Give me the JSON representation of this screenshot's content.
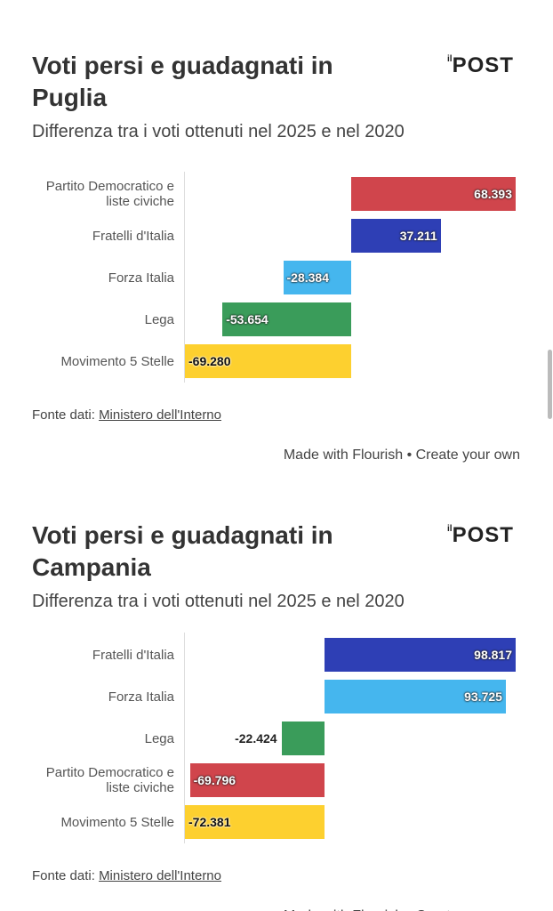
{
  "chart_data": [
    {
      "type": "bar",
      "orientation": "horizontal",
      "title": "Voti persi e guadagnati in Puglia",
      "subtitle": "Differenza tra i voti ottenuti nel 2025 e nel 2020",
      "logo": {
        "prefix": "il",
        "name": "POST"
      },
      "categories": [
        "Partito Democratico e liste civiche",
        "Fratelli d'Italia",
        "Forza Italia",
        "Lega",
        "Movimento 5 Stelle"
      ],
      "values": [
        68393,
        37211,
        -28384,
        -53654,
        -69280
      ],
      "value_labels": [
        "68.393",
        "37.211",
        "-28.384",
        "-53.654",
        "-69.280"
      ],
      "colors": [
        "#d0454c",
        "#2e3fb5",
        "#45b6ee",
        "#3a9c5a",
        "#fdd02f"
      ],
      "source_label": "Fonte dati:",
      "source": "Ministero dell'Interno",
      "credit": "Made with Flourish • Create your own"
    },
    {
      "type": "bar",
      "orientation": "horizontal",
      "title": "Voti persi e guadagnati in Campania",
      "subtitle": "Differenza tra i voti ottenuti nel 2025 e nel 2020",
      "logo": {
        "prefix": "il",
        "name": "POST"
      },
      "categories": [
        "Fratelli d'Italia",
        "Forza Italia",
        "Lega",
        "Partito Democratico e liste civiche",
        "Movimento 5 Stelle"
      ],
      "values": [
        98817,
        93725,
        -22424,
        -69796,
        -72381
      ],
      "value_labels": [
        "98.817",
        "93.725",
        "-22.424",
        "-69.796",
        "-72.381"
      ],
      "colors": [
        "#2e3fb5",
        "#45b6ee",
        "#3a9c5a",
        "#d0454c",
        "#fdd02f"
      ],
      "source_label": "Fonte dati:",
      "source": "Ministero dell'Interno",
      "credit": "Made with Flourish • Create your own"
    }
  ]
}
